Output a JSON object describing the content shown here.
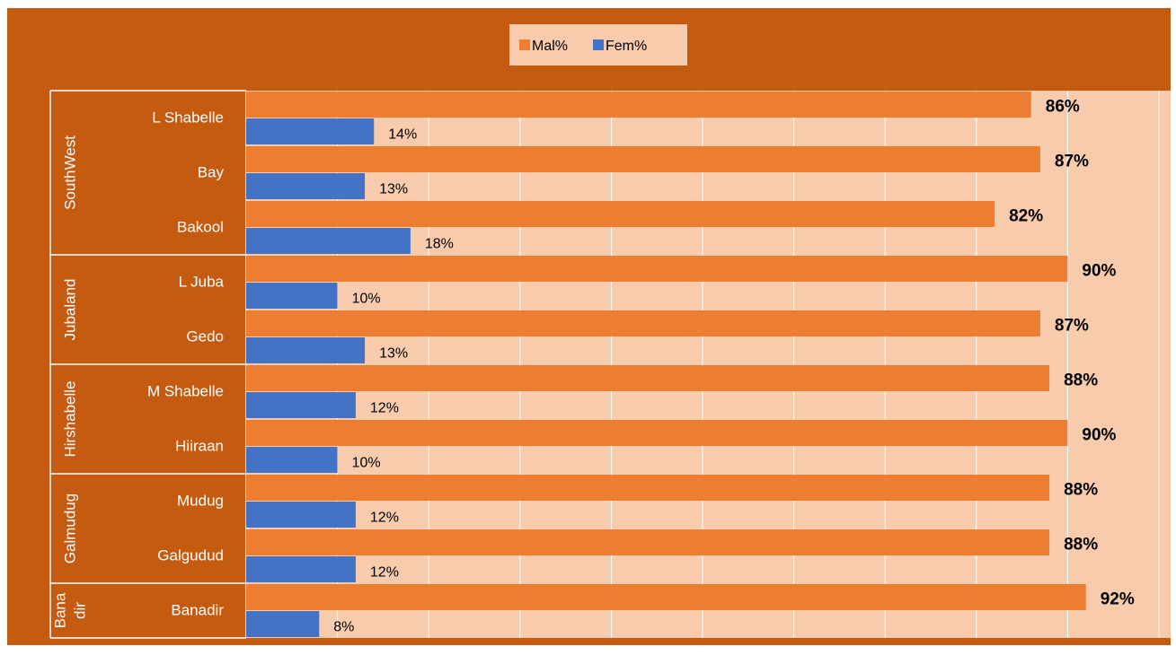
{
  "chart_data": {
    "type": "bar",
    "orientation": "horizontal",
    "title": "",
    "xlabel": "",
    "ylabel": "",
    "xlim": [
      0,
      100
    ],
    "grid": true,
    "legend_position": "top-center",
    "groups": [
      {
        "name": "SouthWest",
        "label_lines": [
          "SouthWest"
        ],
        "categories": [
          "L Shabelle",
          "Bay",
          "Bakool"
        ]
      },
      {
        "name": "Jubaland",
        "label_lines": [
          "Jubaland"
        ],
        "categories": [
          "L Juba",
          "Gedo"
        ]
      },
      {
        "name": "Hirshabelle",
        "label_lines": [
          "Hirshabelle"
        ],
        "categories": [
          "M Shabelle",
          "Hiiraan"
        ]
      },
      {
        "name": "Galmudug",
        "label_lines": [
          "Galmudug"
        ],
        "categories": [
          "Mudug",
          "Galgudud"
        ]
      },
      {
        "name": "Banadir",
        "label_lines": [
          "Bana",
          "dir"
        ],
        "categories": [
          "Banadir"
        ]
      }
    ],
    "categories": [
      "L Shabelle",
      "Bay",
      "Bakool",
      "L Juba",
      "Gedo",
      "M Shabelle",
      "Hiiraan",
      "Mudug",
      "Galgudud",
      "Banadir"
    ],
    "series": [
      {
        "name": "Mal%",
        "color": "#ED7D31",
        "values": [
          86,
          87,
          82,
          90,
          87,
          88,
          90,
          88,
          88,
          92
        ],
        "labels": [
          "86%",
          "87%",
          "82%",
          "90%",
          "87%",
          "88%",
          "90%",
          "88%",
          "88%",
          "92%"
        ]
      },
      {
        "name": "Fem%",
        "color": "#4472C4",
        "values": [
          14,
          13,
          18,
          10,
          13,
          12,
          10,
          12,
          12,
          8
        ],
        "labels": [
          "14%",
          "13%",
          "18%",
          "10%",
          "13%",
          "12%",
          "10%",
          "12%",
          "12%",
          "8%"
        ]
      }
    ],
    "colors": {
      "frame": "#C55A11",
      "plot_area": "#F8CBAD",
      "gridline": "#FFFFFF"
    }
  }
}
